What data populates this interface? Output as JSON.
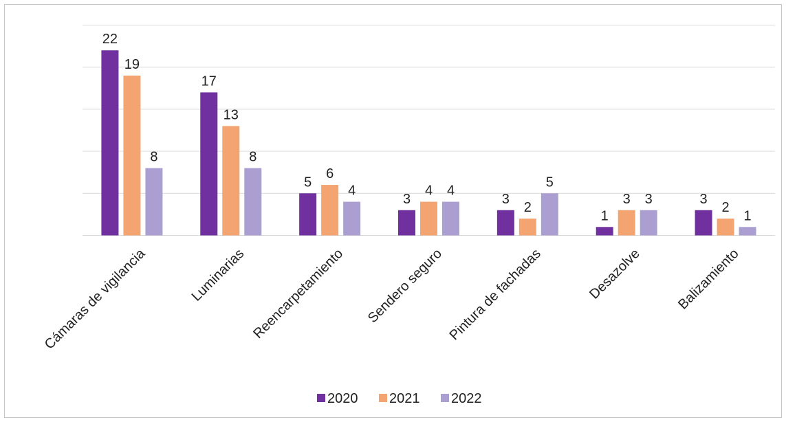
{
  "chart_data": {
    "type": "bar",
    "title": "",
    "xlabel": "",
    "ylabel": "",
    "categories": [
      "Cámaras de vigilancia",
      "Luminarias",
      "Reencarpetamiento",
      "Sendero seguro",
      "Pintura de fachadas",
      "Desazolve",
      "Balizamiento"
    ],
    "series": [
      {
        "name": "2020",
        "color": "#7030a0",
        "values": [
          22,
          17,
          5,
          3,
          3,
          1,
          3
        ]
      },
      {
        "name": "2021",
        "color": "#f4a471",
        "values": [
          19,
          13,
          6,
          4,
          2,
          3,
          2
        ]
      },
      {
        "name": "2022",
        "color": "#ab9fd2",
        "values": [
          8,
          8,
          4,
          4,
          5,
          3,
          1
        ]
      }
    ],
    "ylim": [
      0,
      25
    ],
    "grid": true,
    "legend_position": "bottom"
  }
}
